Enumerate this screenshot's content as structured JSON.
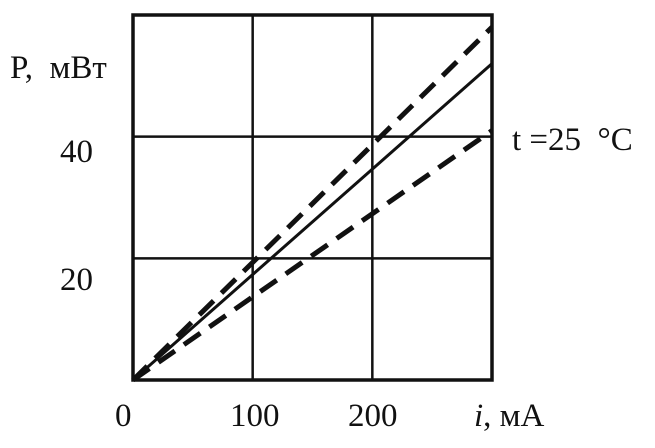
{
  "chart_data": {
    "type": "line",
    "title": "",
    "xlabel": "i, мА",
    "xlabel_var": "i",
    "xlabel_unit": ", мА",
    "ylabel": "P,  мВт",
    "annotation": "t =25  °C",
    "xlim": [
      0,
      300
    ],
    "ylim": [
      0,
      60
    ],
    "xticks": [
      0,
      100,
      200
    ],
    "yticks": [
      20,
      40
    ],
    "xtick_labels": [
      "0",
      "100",
      "200"
    ],
    "ytick_labels": [
      "20",
      "40"
    ],
    "grid": true,
    "series": [
      {
        "style": "dashed",
        "x": [
          0,
          300
        ],
        "y": [
          0,
          58
        ]
      },
      {
        "style": "solid",
        "x": [
          0,
          300
        ],
        "y": [
          0,
          52
        ]
      },
      {
        "style": "dashed",
        "x": [
          0,
          300
        ],
        "y": [
          0,
          41
        ]
      }
    ]
  }
}
